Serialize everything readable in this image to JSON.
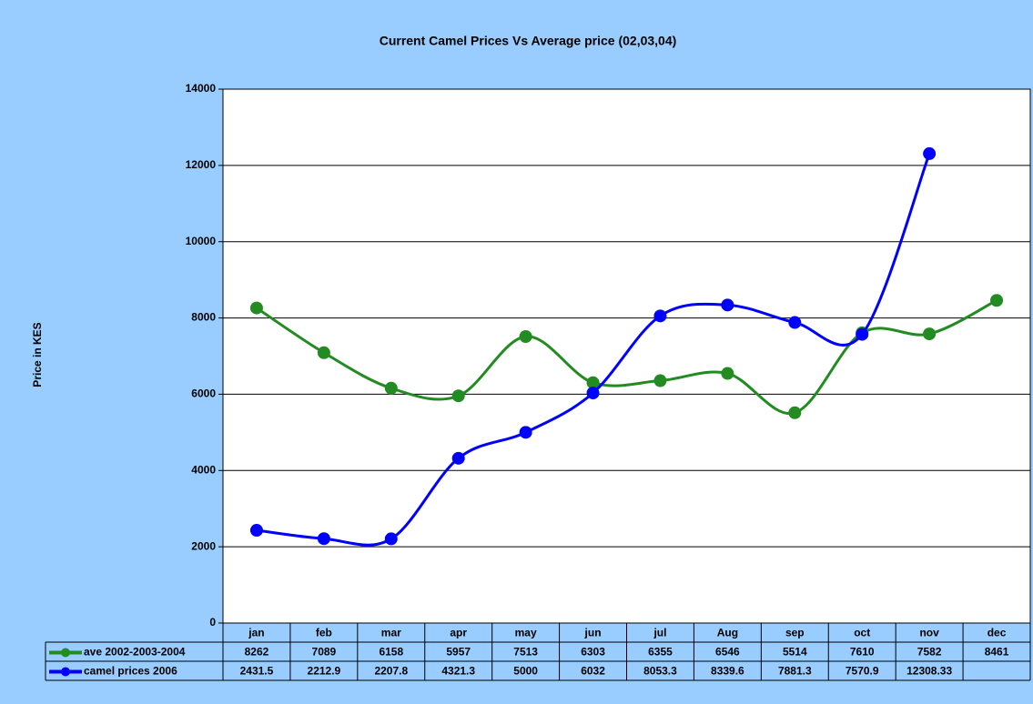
{
  "chart_data": {
    "type": "line",
    "title": "Current Camel Prices Vs Average price (02,03,04)",
    "y_label": "Price in KES",
    "categories": [
      "jan",
      "feb",
      "mar",
      "apr",
      "may",
      "jun",
      "jul",
      "Aug",
      "sep",
      "oct",
      "nov",
      "dec"
    ],
    "series": [
      {
        "name": "ave 2002-2003-2004",
        "color": "#228b22",
        "values": [
          8262,
          7089,
          6158,
          5957,
          7513,
          6303,
          6355,
          6546,
          5514,
          7610,
          7582,
          8461
        ]
      },
      {
        "name": "camel prices 2006",
        "color": "#0000ff",
        "values": [
          2431.5,
          2212.9,
          2207.8,
          4321.3,
          5000,
          6032,
          8053.3,
          8339.6,
          7881.3,
          7570.9,
          12308.33,
          null
        ]
      }
    ],
    "ylim": [
      0,
      14000
    ],
    "yticks": [
      0,
      2000,
      4000,
      6000,
      8000,
      10000,
      12000,
      14000
    ],
    "grid": true,
    "smooth": true,
    "data_table": true
  }
}
